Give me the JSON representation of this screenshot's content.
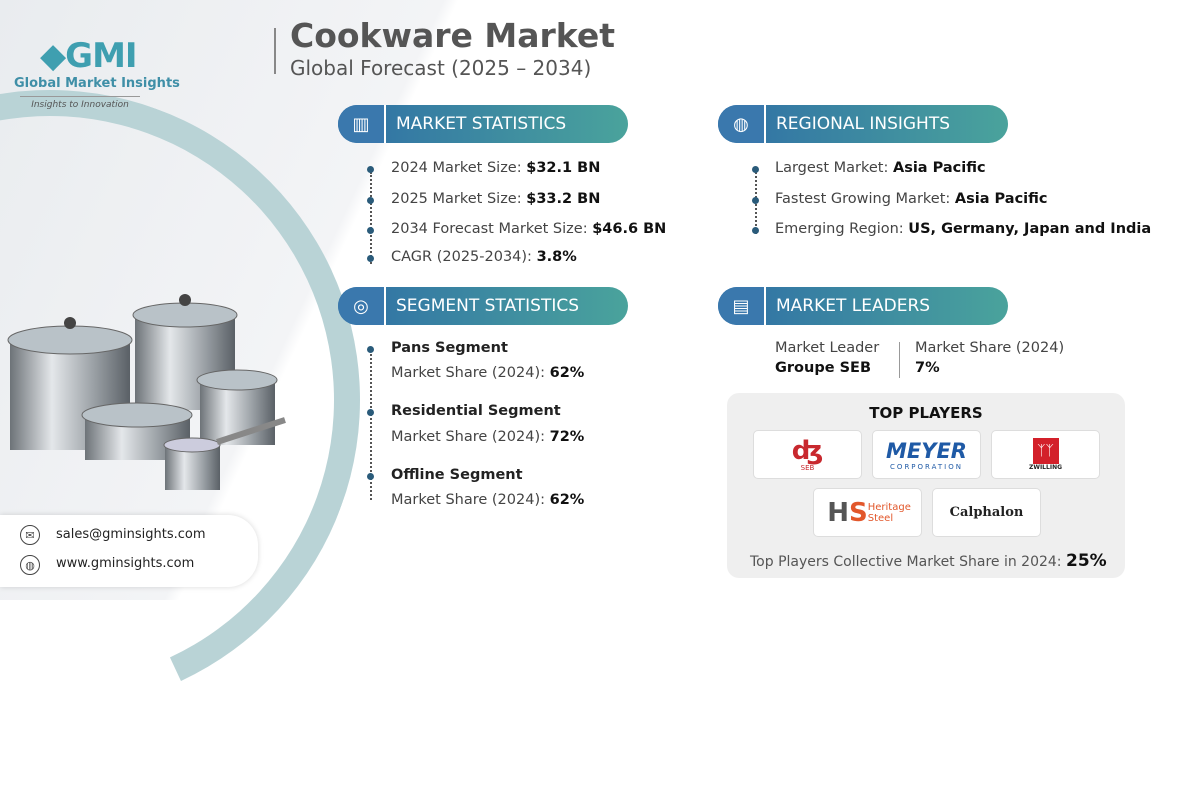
{
  "header": {
    "title": "Cookware Market",
    "subtitle": "Global Forecast (2025 – 2034)"
  },
  "logo": {
    "mark": "GMI",
    "name": "Global Market Insights",
    "tagline": "Insights to Innovation"
  },
  "market_statistics": {
    "heading": "MARKET STATISTICS",
    "icon": "chart-globe-icon",
    "items": [
      {
        "label": "2024 Market Size: ",
        "value": "$32.1 BN"
      },
      {
        "label": "2025 Market Size: ",
        "value": "$33.2 BN"
      },
      {
        "label": "2034 Forecast Market Size: ",
        "value": "$46.6 BN"
      },
      {
        "label": "CAGR (2025-2034): ",
        "value": "3.8%"
      }
    ]
  },
  "regional_insights": {
    "heading": "REGIONAL INSIGHTS",
    "icon": "globe-icon",
    "items": [
      {
        "label": "Largest Market: ",
        "value": "Asia Pacific"
      },
      {
        "label": "Fastest Growing Market: ",
        "value": "Asia Pacific"
      },
      {
        "label": "Emerging Region: ",
        "value": "US, Germany, Japan and India"
      }
    ]
  },
  "segment_statistics": {
    "heading": "SEGMENT STATISTICS",
    "icon": "target-chart-icon",
    "items": [
      {
        "title": "Pans Segment",
        "label": "Market Share (2024): ",
        "value": "62%"
      },
      {
        "title": "Residential Segment",
        "label": "Market Share (2024): ",
        "value": "72%"
      },
      {
        "title": "Offline Segment",
        "label": "Market Share (2024): ",
        "value": "62%"
      }
    ]
  },
  "market_leaders": {
    "heading": "MARKET LEADERS",
    "icon": "bar-chart-icon",
    "leader_label": "Market Leader",
    "leader": "Groupe SEB",
    "share_label": "Market Share (2024)",
    "share": "7%"
  },
  "top_players": {
    "heading": "TOP PLAYERS",
    "logos": [
      {
        "name": "SEB",
        "color": "#c8282e"
      },
      {
        "name": "MEYER",
        "sub": "CORPORATION",
        "color": "#1f5aa6"
      },
      {
        "name": "ZWILLING",
        "color": "#d3202a"
      },
      {
        "name": "Heritage Steel",
        "color": "#e2572b"
      },
      {
        "name": "Calphalon",
        "color": "#222"
      }
    ],
    "collective_label": "Top Players Collective Market Share in 2024: ",
    "collective_value": "25%"
  },
  "contact": {
    "email": "sales@gminsights.com",
    "website": "www.gminsights.com"
  },
  "colors": {
    "accent_blue": "#2f6fa6",
    "accent_teal": "#4aa39c"
  }
}
